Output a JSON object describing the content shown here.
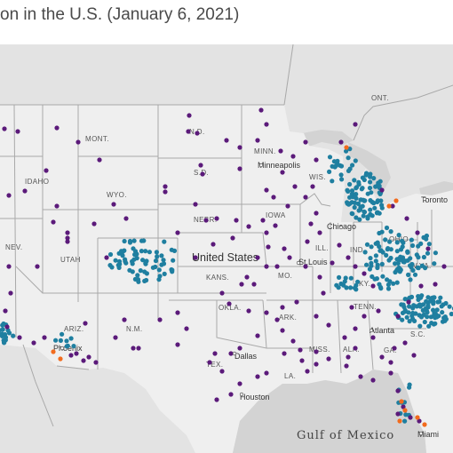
{
  "title": "on in the U.S. (January 6, 2021)",
  "colors": {
    "land_us": "#efefef",
    "land_other": "#e2e2e2",
    "water": "#d3d3d3",
    "borders": "#a9a9a9",
    "purple": "#5b1a7a",
    "teal": "#1f7fa0",
    "orange": "#f26b1d"
  },
  "map": {
    "country_label": "United States",
    "water_label": "Gulf of Mexico",
    "state_labels": [
      "N.D.",
      "MONT.",
      "MINN.",
      "IDAHO",
      "S.D.",
      "WYO.",
      "WIS.",
      "IOWA",
      "NEBR.",
      "NEV.",
      "UTAH",
      "ILL.",
      "IND.",
      "OHIO",
      "W.VA.",
      "KY.",
      "MO.",
      "KANS.",
      "OKLA.",
      "ARK.",
      "TENN.",
      "N.M.",
      "ARIZ.",
      "MISS.",
      "ALA.",
      "GA.",
      "S.C.",
      "LA.",
      "TEX.",
      "ONT."
    ],
    "city_labels": [
      "Minneapolis",
      "Chicago",
      "Toronto",
      "St.Louis",
      "Atlanta",
      "Phoenix",
      "Dallas",
      "Houston",
      "Miami"
    ]
  }
}
